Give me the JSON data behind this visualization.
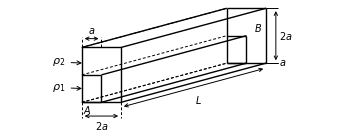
{
  "bg_color": "#ffffff",
  "line_color": "#000000",
  "figsize": [
    3.41,
    1.39
  ],
  "dpi": 100,
  "lw_solid": 1.0,
  "lw_dashed": 0.7,
  "fontsize_label": 7,
  "fontsize_dim": 7
}
